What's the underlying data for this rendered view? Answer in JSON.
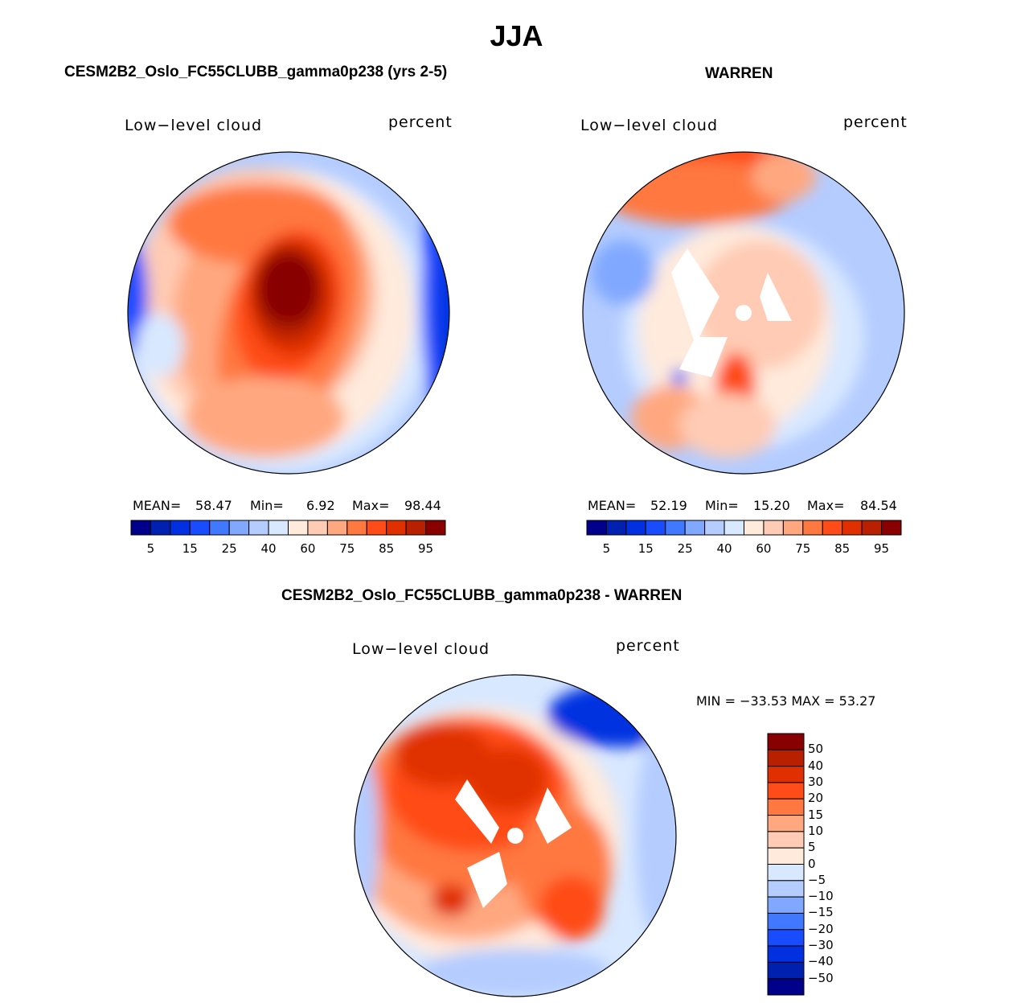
{
  "figure": {
    "title": "JJA"
  },
  "panels": [
    {
      "title": "CESM2B2_Oslo_FC55CLUBB_gamma0p238 (yrs 2-5)",
      "left_label": "Low−level cloud",
      "right_label": "percent",
      "stats": {
        "mean_label": "MEAN=",
        "mean": "58.47",
        "min_label": "Min=",
        "min": "6.92",
        "max_label": "Max=",
        "max": "98.44"
      }
    },
    {
      "title": "WARREN",
      "left_label": "Low−level cloud",
      "right_label": "percent",
      "stats": {
        "mean_label": "MEAN=",
        "mean": "52.19",
        "min_label": "Min=",
        "min": "15.20",
        "max_label": "Max=",
        "max": "84.54"
      }
    },
    {
      "title": "CESM2B2_Oslo_FC55CLUBB_gamma0p238 - WARREN",
      "left_label": "Low−level cloud",
      "right_label": "percent",
      "stats": {
        "minmax": "MIN = −33.53 MAX =   53.27"
      }
    }
  ],
  "colorbar_abs": {
    "labels": [
      "5",
      "15",
      "25",
      "40",
      "60",
      "75",
      "85",
      "95"
    ]
  },
  "colorbar_diff": {
    "labels": [
      "50",
      "40",
      "30",
      "20",
      "15",
      "10",
      "5",
      "0",
      "−5",
      "−10",
      "−15",
      "−20",
      "−30",
      "−40",
      "−50"
    ]
  },
  "palette": [
    "#00008a",
    "#0020b0",
    "#0030e0",
    "#1a4cff",
    "#4078ff",
    "#80a8ff",
    "#b4ccff",
    "#d8e8ff",
    "#ffeadc",
    "#ffcbb4",
    "#ffa880",
    "#ff7840",
    "#ff4c18",
    "#e03000",
    "#b82000",
    "#880000"
  ]
}
